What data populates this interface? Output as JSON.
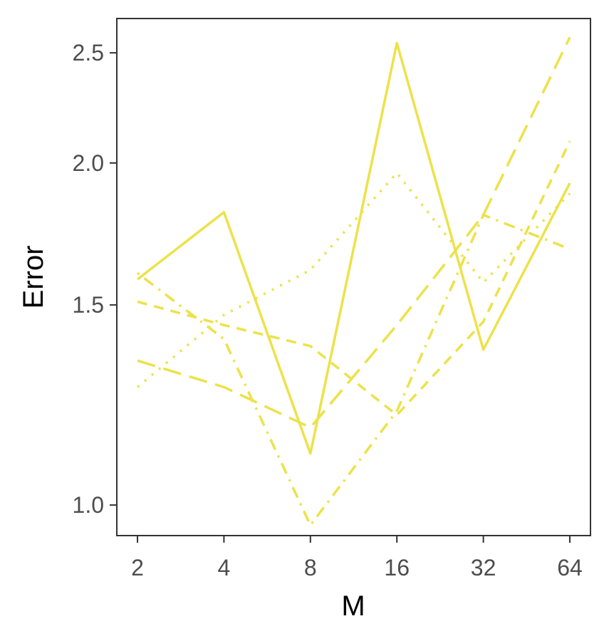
{
  "chart_data": {
    "type": "line",
    "title": "",
    "xlabel": "M",
    "ylabel": "Error",
    "x_scale": "log2",
    "y_scale": "log",
    "categories": [
      "2",
      "4",
      "8",
      "16",
      "32",
      "64"
    ],
    "x": [
      2,
      4,
      8,
      16,
      32,
      64
    ],
    "yticks": [
      1.0,
      1.5,
      2.0,
      2.5
    ],
    "ytick_labels": [
      "1.0",
      "1.5",
      "2.0",
      "2.5"
    ],
    "ylim": [
      0.94,
      2.68
    ],
    "grid": false,
    "legend": "none",
    "line_color": "#ECE24A",
    "series": [
      {
        "linetype": "solid",
        "values": [
          1.58,
          1.81,
          1.11,
          2.55,
          1.37,
          1.92
        ]
      },
      {
        "linetype": "dotted",
        "values": [
          1.27,
          1.47,
          1.61,
          1.96,
          1.57,
          1.88
        ]
      },
      {
        "linetype": "dashed",
        "values": [
          1.51,
          1.44,
          1.38,
          1.2,
          1.45,
          2.09
        ]
      },
      {
        "linetype": "dotdash",
        "values": [
          1.6,
          1.4,
          0.96,
          1.21,
          1.8,
          1.68
        ]
      },
      {
        "linetype": "longdash",
        "values": [
          1.34,
          1.27,
          1.17,
          1.44,
          1.8,
          2.58
        ]
      }
    ]
  }
}
